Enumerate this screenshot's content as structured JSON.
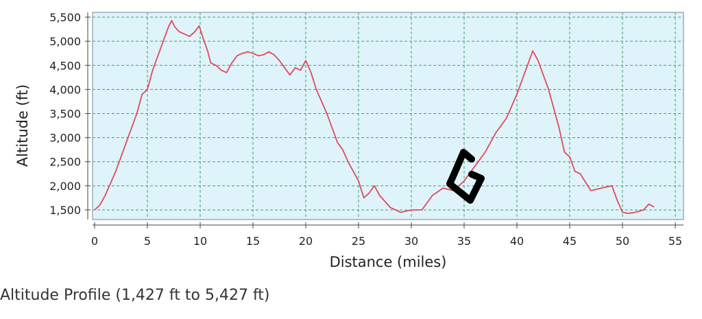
{
  "caption": "Altitude Profile (1,427 ft to 5,427 ft)",
  "colors": {
    "plot_background": "#dff3fa",
    "grid": "#3aa36a",
    "line": "#e04a5a",
    "frame": "#8a9aa8",
    "marker": "#000000"
  },
  "chart_data": {
    "type": "line",
    "title": "",
    "xlabel": "Distance (miles)",
    "ylabel": "Altitude (ft)",
    "xlim": [
      0,
      55
    ],
    "ylim": [
      1300,
      5600
    ],
    "xticks": [
      0,
      5,
      10,
      15,
      20,
      25,
      30,
      35,
      40,
      45,
      50,
      55
    ],
    "xtick_labels": [
      "0",
      "5",
      "10",
      "15",
      "20",
      "25",
      "30",
      "35",
      "40",
      "45",
      "50",
      "55"
    ],
    "yticks": [
      1500,
      2000,
      2500,
      3000,
      3500,
      4000,
      4500,
      5000,
      5500
    ],
    "ytick_labels": [
      "1,500",
      "2,000",
      "2,500",
      "3,000",
      "3,500",
      "4,000",
      "4,500",
      "5,000",
      "5,500"
    ],
    "grid": true,
    "annotation": "G",
    "series": [
      {
        "x": [
          0,
          0.5,
          1,
          2,
          3,
          4,
          4.5,
          5,
          5.5,
          6,
          6.5,
          7,
          7.3,
          7.6,
          8,
          8.5,
          9,
          9.5,
          9.9,
          10.3,
          10.7,
          11,
          11.5,
          12,
          12.5,
          13,
          13.5,
          14,
          14.5,
          15,
          15.5,
          16,
          16.5,
          17,
          17.5,
          18,
          18.5,
          19,
          19.5,
          20,
          20.5,
          21,
          22,
          23,
          23.5,
          24,
          25,
          25.5,
          26,
          26.5,
          27,
          28,
          29,
          30,
          31,
          32,
          33,
          34,
          35,
          36,
          37,
          38,
          39,
          40,
          40.5,
          41,
          41.5,
          42,
          43,
          44,
          44.5,
          45,
          45.5,
          46,
          47,
          48,
          49,
          49.5,
          50,
          50.5,
          51,
          52,
          52.5,
          53
        ],
        "y": [
          1500,
          1600,
          1800,
          2300,
          2900,
          3500,
          3900,
          4000,
          4400,
          4700,
          5000,
          5300,
          5430,
          5300,
          5200,
          5150,
          5100,
          5200,
          5320,
          5050,
          4800,
          4550,
          4500,
          4400,
          4350,
          4550,
          4700,
          4750,
          4780,
          4750,
          4700,
          4720,
          4780,
          4720,
          4600,
          4450,
          4300,
          4450,
          4400,
          4600,
          4350,
          4000,
          3500,
          2900,
          2750,
          2500,
          2100,
          1750,
          1850,
          2000,
          1800,
          1550,
          1450,
          1500,
          1500,
          1800,
          1950,
          1900,
          2100,
          2400,
          2700,
          3100,
          3400,
          3900,
          4200,
          4500,
          4800,
          4600,
          4000,
          3200,
          2700,
          2600,
          2300,
          2250,
          1900,
          1950,
          2000,
          1700,
          1450,
          1430,
          1440,
          1500,
          1620,
          1560
        ]
      }
    ]
  }
}
